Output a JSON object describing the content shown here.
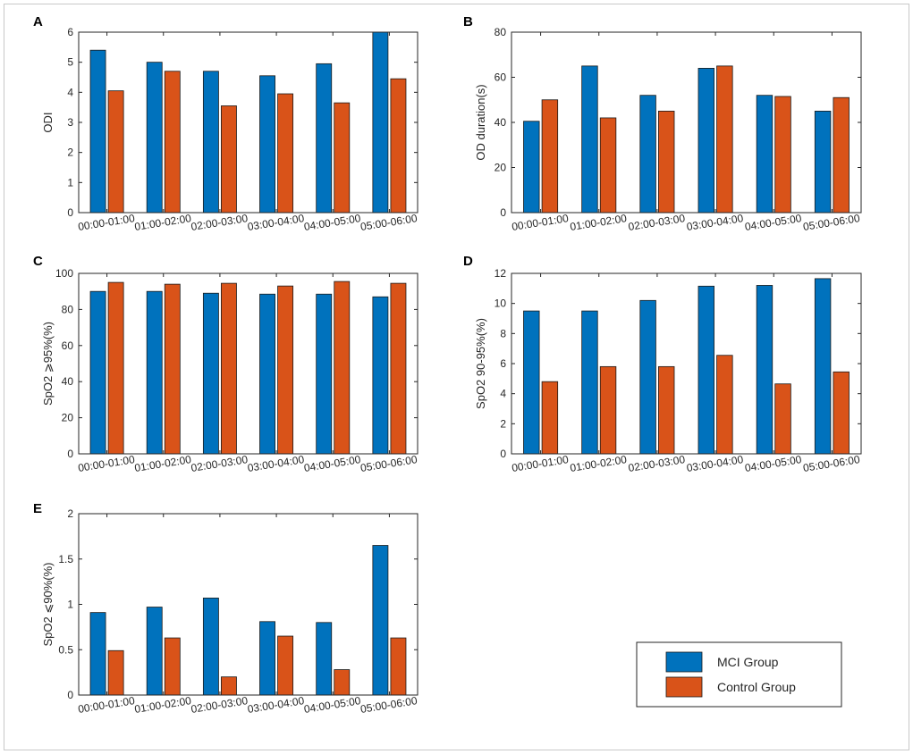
{
  "colors": {
    "mci": "#0072BD",
    "control": "#D95319",
    "axis": "#262626"
  },
  "legend": {
    "items": [
      {
        "label": "MCI Group",
        "color": "#0072BD"
      },
      {
        "label": "Control Group",
        "color": "#D95319"
      }
    ]
  },
  "chart_data": [
    {
      "type": "bar",
      "panel": "A",
      "ylabel": "ODI",
      "ylim": [
        0,
        6
      ],
      "yticks": [
        0,
        1,
        2,
        3,
        4,
        5,
        6
      ],
      "categories": [
        "00:00-01:00",
        "01:00-02:00",
        "02:00-03:00",
        "03:00-04:00",
        "04:00-05:00",
        "05:00-06:00"
      ],
      "series": [
        {
          "name": "MCI Group",
          "values": [
            5.4,
            5.0,
            4.7,
            4.55,
            4.95,
            6.0
          ]
        },
        {
          "name": "Control Group",
          "values": [
            4.05,
            4.7,
            3.55,
            3.95,
            3.65,
            4.45
          ]
        }
      ]
    },
    {
      "type": "bar",
      "panel": "B",
      "ylabel": "OD duration(s)",
      "ylim": [
        0,
        80
      ],
      "yticks": [
        0,
        20,
        40,
        60,
        80
      ],
      "categories": [
        "00:00-01:00",
        "01:00-02:00",
        "02:00-03:00",
        "03:00-04:00",
        "04:00-05:00",
        "05:00-06:00"
      ],
      "series": [
        {
          "name": "MCI Group",
          "values": [
            40.5,
            65,
            52,
            64,
            52,
            45
          ]
        },
        {
          "name": "Control Group",
          "values": [
            50,
            42,
            45,
            65,
            51.5,
            51
          ]
        }
      ]
    },
    {
      "type": "bar",
      "panel": "C",
      "ylabel": "SpO2 ⩾95%(%)",
      "ylim": [
        0,
        100
      ],
      "yticks": [
        0,
        20,
        40,
        60,
        80,
        100
      ],
      "categories": [
        "00:00-01:00",
        "01:00-02:00",
        "02:00-03:00",
        "03:00-04:00",
        "04:00-05:00",
        "05:00-06:00"
      ],
      "series": [
        {
          "name": "MCI Group",
          "values": [
            90,
            90,
            89,
            88.5,
            88.5,
            87
          ]
        },
        {
          "name": "Control Group",
          "values": [
            95,
            94,
            94.5,
            93,
            95.5,
            94.5
          ]
        }
      ]
    },
    {
      "type": "bar",
      "panel": "D",
      "ylabel": "SpO2 90-95%(%)",
      "ylim": [
        0,
        12
      ],
      "yticks": [
        0,
        2,
        4,
        6,
        8,
        10,
        12
      ],
      "categories": [
        "00:00-01:00",
        "01:00-02:00",
        "02:00-03:00",
        "03:00-04:00",
        "04:00-05:00",
        "05:00-06:00"
      ],
      "series": [
        {
          "name": "MCI Group",
          "values": [
            9.5,
            9.5,
            10.2,
            11.15,
            11.2,
            11.65
          ]
        },
        {
          "name": "Control Group",
          "values": [
            4.8,
            5.8,
            5.8,
            6.55,
            4.65,
            5.45
          ]
        }
      ]
    },
    {
      "type": "bar",
      "panel": "E",
      "ylabel": "SpO2 ⩽90%(%)",
      "ylim": [
        0,
        2
      ],
      "yticks": [
        0,
        0.5,
        1,
        1.5,
        2
      ],
      "categories": [
        "00:00-01:00",
        "01:00-02:00",
        "02:00-03:00",
        "03:00-04:00",
        "04:00-05:00",
        "05:00-06:00"
      ],
      "series": [
        {
          "name": "MCI Group",
          "values": [
            0.91,
            0.97,
            1.07,
            0.81,
            0.8,
            1.65
          ]
        },
        {
          "name": "Control Group",
          "values": [
            0.49,
            0.63,
            0.2,
            0.65,
            0.28,
            0.63
          ]
        }
      ]
    }
  ]
}
